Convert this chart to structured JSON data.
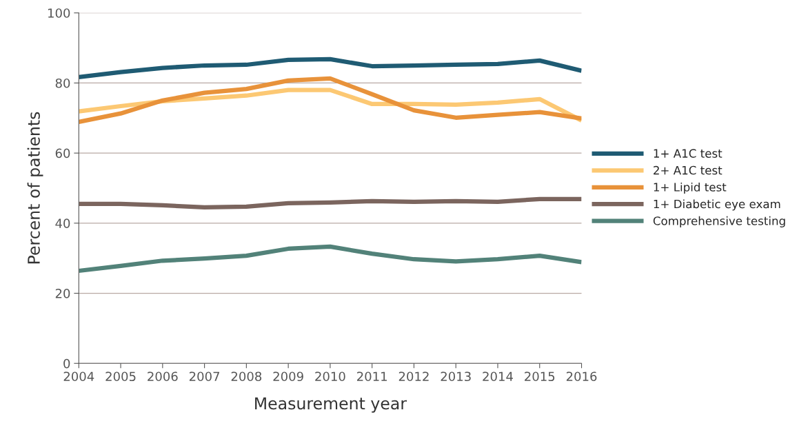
{
  "chart_data": {
    "type": "line",
    "xlabel": "Measurement year",
    "ylabel": "Percent of patients",
    "x": [
      2004,
      2005,
      2006,
      2007,
      2008,
      2009,
      2010,
      2011,
      2012,
      2013,
      2014,
      2015,
      2016
    ],
    "xlim": [
      2004,
      2016
    ],
    "xticks": [
      2004,
      2005,
      2006,
      2007,
      2008,
      2009,
      2010,
      2011,
      2012,
      2013,
      2014,
      2015,
      2016
    ],
    "ylim": [
      0,
      100
    ],
    "yticks": [
      0,
      20,
      40,
      60,
      80,
      100
    ],
    "grid": "y",
    "legend": "right",
    "marker": "none",
    "line_style": "solid",
    "series": [
      {
        "name": "1+ A1C test",
        "color": "#1f5b73",
        "values": [
          81.7,
          83.1,
          84.3,
          85.0,
          85.2,
          86.6,
          86.8,
          84.8,
          85.0,
          85.2,
          85.4,
          86.4,
          83.5
        ]
      },
      {
        "name": "2+ A1C test",
        "color": "#fcc873",
        "values": [
          71.9,
          73.4,
          74.8,
          75.6,
          76.4,
          78.0,
          78.0,
          74.0,
          74.0,
          73.8,
          74.4,
          75.4,
          69.3
        ]
      },
      {
        "name": "1+ Lipid test",
        "color": "#e8923a",
        "values": [
          68.9,
          71.3,
          75.0,
          77.2,
          78.3,
          80.7,
          81.3,
          76.8,
          72.2,
          70.1,
          70.9,
          71.7,
          69.9
        ]
      },
      {
        "name": "1+ Diabetic eye exam",
        "color": "#7b655e",
        "values": [
          45.5,
          45.5,
          45.1,
          44.5,
          44.7,
          45.7,
          45.9,
          46.3,
          46.1,
          46.3,
          46.1,
          46.9,
          46.9
        ]
      },
      {
        "name": "Comprehensive testing",
        "color": "#528279",
        "values": [
          26.4,
          27.8,
          29.3,
          29.9,
          30.7,
          32.7,
          33.3,
          31.3,
          29.7,
          29.1,
          29.7,
          30.7,
          28.9
        ]
      }
    ]
  }
}
